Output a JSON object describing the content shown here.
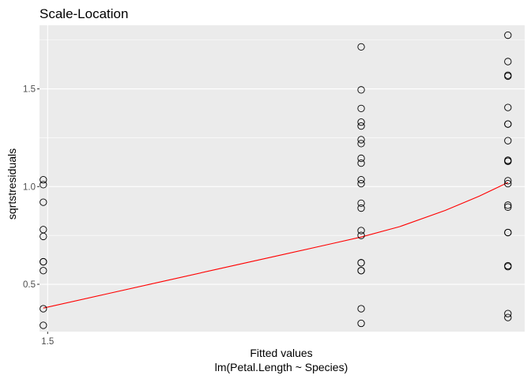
{
  "chart_data": {
    "type": "scatter",
    "title": "Scale-Location",
    "xlabel": "Fitted values",
    "xlabel_sub": "lm(Petal.Length ~ Species)",
    "ylabel": "sqrtstresiduals",
    "xlim": [
      1.4285,
      5.6995
    ],
    "ylim": [
      0.2577,
      1.8257
    ],
    "xticks": [
      1.5
    ],
    "xtick_labels": [
      "1.5"
    ],
    "yticks": [
      0.5,
      1.0,
      1.5
    ],
    "ytick_labels": [
      "0.5",
      "1.0",
      "1.5"
    ],
    "grid": true,
    "background": "#ebebeb",
    "grid_major_color": "#ffffff",
    "point_stroke": "#000000",
    "trend_color": "#ff0000",
    "series": [
      {
        "values_x": [
          1.462,
          1.462,
          1.462,
          1.462,
          1.462,
          1.462,
          1.462,
          1.462,
          1.462,
          1.462,
          4.26,
          4.26,
          4.26,
          4.26,
          4.26,
          4.26,
          4.26,
          4.26,
          4.26,
          4.26,
          4.26,
          4.26,
          4.26,
          4.26,
          4.26,
          4.26,
          4.26,
          4.26,
          4.26,
          4.26,
          4.26,
          5.552,
          5.552,
          5.552,
          5.552,
          5.552,
          5.552,
          5.552,
          5.552,
          5.552,
          5.552,
          5.552,
          5.552,
          5.552,
          5.552,
          5.552,
          5.552,
          5.552,
          5.552,
          5.552,
          5.552,
          5.552
        ],
        "values_y": [
          0.29,
          0.375,
          0.57,
          0.615,
          0.745,
          0.78,
          0.92,
          1.01,
          1.035,
          0.615,
          0.3,
          0.375,
          0.57,
          0.61,
          0.75,
          0.775,
          0.89,
          0.915,
          1.015,
          1.035,
          1.12,
          1.145,
          1.22,
          1.24,
          1.31,
          1.33,
          1.4,
          1.495,
          1.715,
          0.57,
          0.61,
          0.33,
          0.35,
          0.59,
          0.595,
          0.765,
          0.765,
          0.895,
          0.905,
          1.015,
          1.03,
          1.13,
          1.135,
          1.235,
          1.32,
          1.32,
          1.405,
          1.565,
          1.57,
          1.64,
          1.775,
          1.13
        ]
      }
    ],
    "trend": {
      "x": [
        1.462,
        2.0,
        2.5,
        3.0,
        3.5,
        4.0,
        4.26,
        4.6,
        5.0,
        5.3,
        5.552
      ],
      "y": [
        0.378,
        0.448,
        0.513,
        0.578,
        0.643,
        0.708,
        0.742,
        0.795,
        0.878,
        0.951,
        1.021
      ]
    }
  }
}
